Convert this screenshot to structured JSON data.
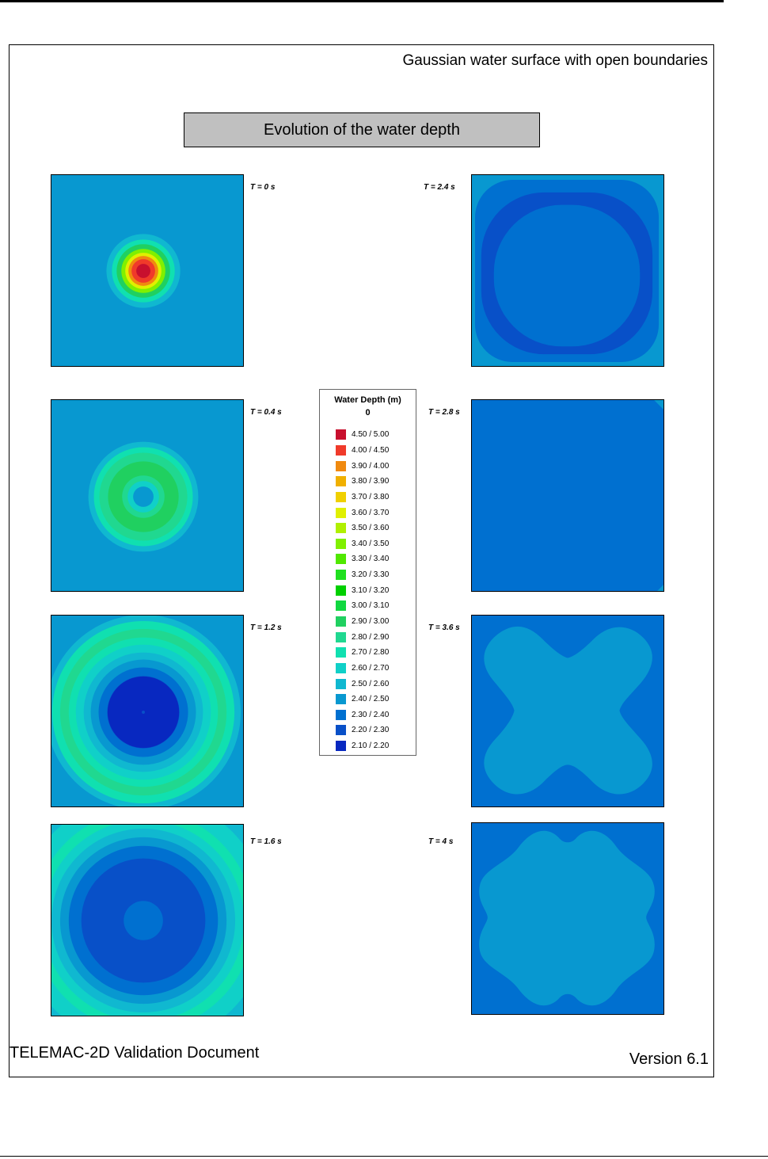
{
  "document": {
    "title": "Gaussian water surface with open boundaries",
    "banner": "Evolution of the water depth",
    "footer_left": "TELEMAC-2D Validation Document",
    "footer_right": "Version 6.1"
  },
  "legend": {
    "title": "Water Depth (m)",
    "subtitle": "0",
    "items": [
      {
        "range": "4.50  /  5.00",
        "color": "#c8102e"
      },
      {
        "range": "4.00  /  4.50",
        "color": "#f03a2a"
      },
      {
        "range": "3.90  /  4.00",
        "color": "#f08a10"
      },
      {
        "range": "3.80  /  3.90",
        "color": "#f0b000"
      },
      {
        "range": "3.70  /  3.80",
        "color": "#f0d000"
      },
      {
        "range": "3.60  /  3.70",
        "color": "#e0f000"
      },
      {
        "range": "3.50  /  3.60",
        "color": "#b0f000"
      },
      {
        "range": "3.40  /  3.50",
        "color": "#80f000"
      },
      {
        "range": "3.30  /  3.40",
        "color": "#50e800"
      },
      {
        "range": "3.20  /  3.30",
        "color": "#20e020"
      },
      {
        "range": "3.10  /  3.20",
        "color": "#00d000"
      },
      {
        "range": "3.00  /  3.10",
        "color": "#10d840"
      },
      {
        "range": "2.90  /  3.00",
        "color": "#20d060"
      },
      {
        "range": "2.80  /  2.90",
        "color": "#20d890"
      },
      {
        "range": "2.70  /  2.80",
        "color": "#10e0b0"
      },
      {
        "range": "2.60  /  2.70",
        "color": "#10d0c8"
      },
      {
        "range": "2.50  /  2.60",
        "color": "#10b8d0"
      },
      {
        "range": "2.40  /  2.50",
        "color": "#0898d0"
      },
      {
        "range": "2.30  /  2.40",
        "color": "#0070d0"
      },
      {
        "range": "2.20  /  2.30",
        "color": "#0850c8"
      },
      {
        "range": "2.10  /  2.20",
        "color": "#0828c0"
      }
    ]
  },
  "snapshots": [
    {
      "time_label": "T = 0 s"
    },
    {
      "time_label": "T = 0.4 s"
    },
    {
      "time_label": "T = 1.2 s"
    },
    {
      "time_label": "T = 1.6 s"
    },
    {
      "time_label": "T = 2.4 s"
    },
    {
      "time_label": "T = 2.8 s"
    },
    {
      "time_label": "T = 3.6 s"
    },
    {
      "time_label": "T = 4 s"
    }
  ]
}
